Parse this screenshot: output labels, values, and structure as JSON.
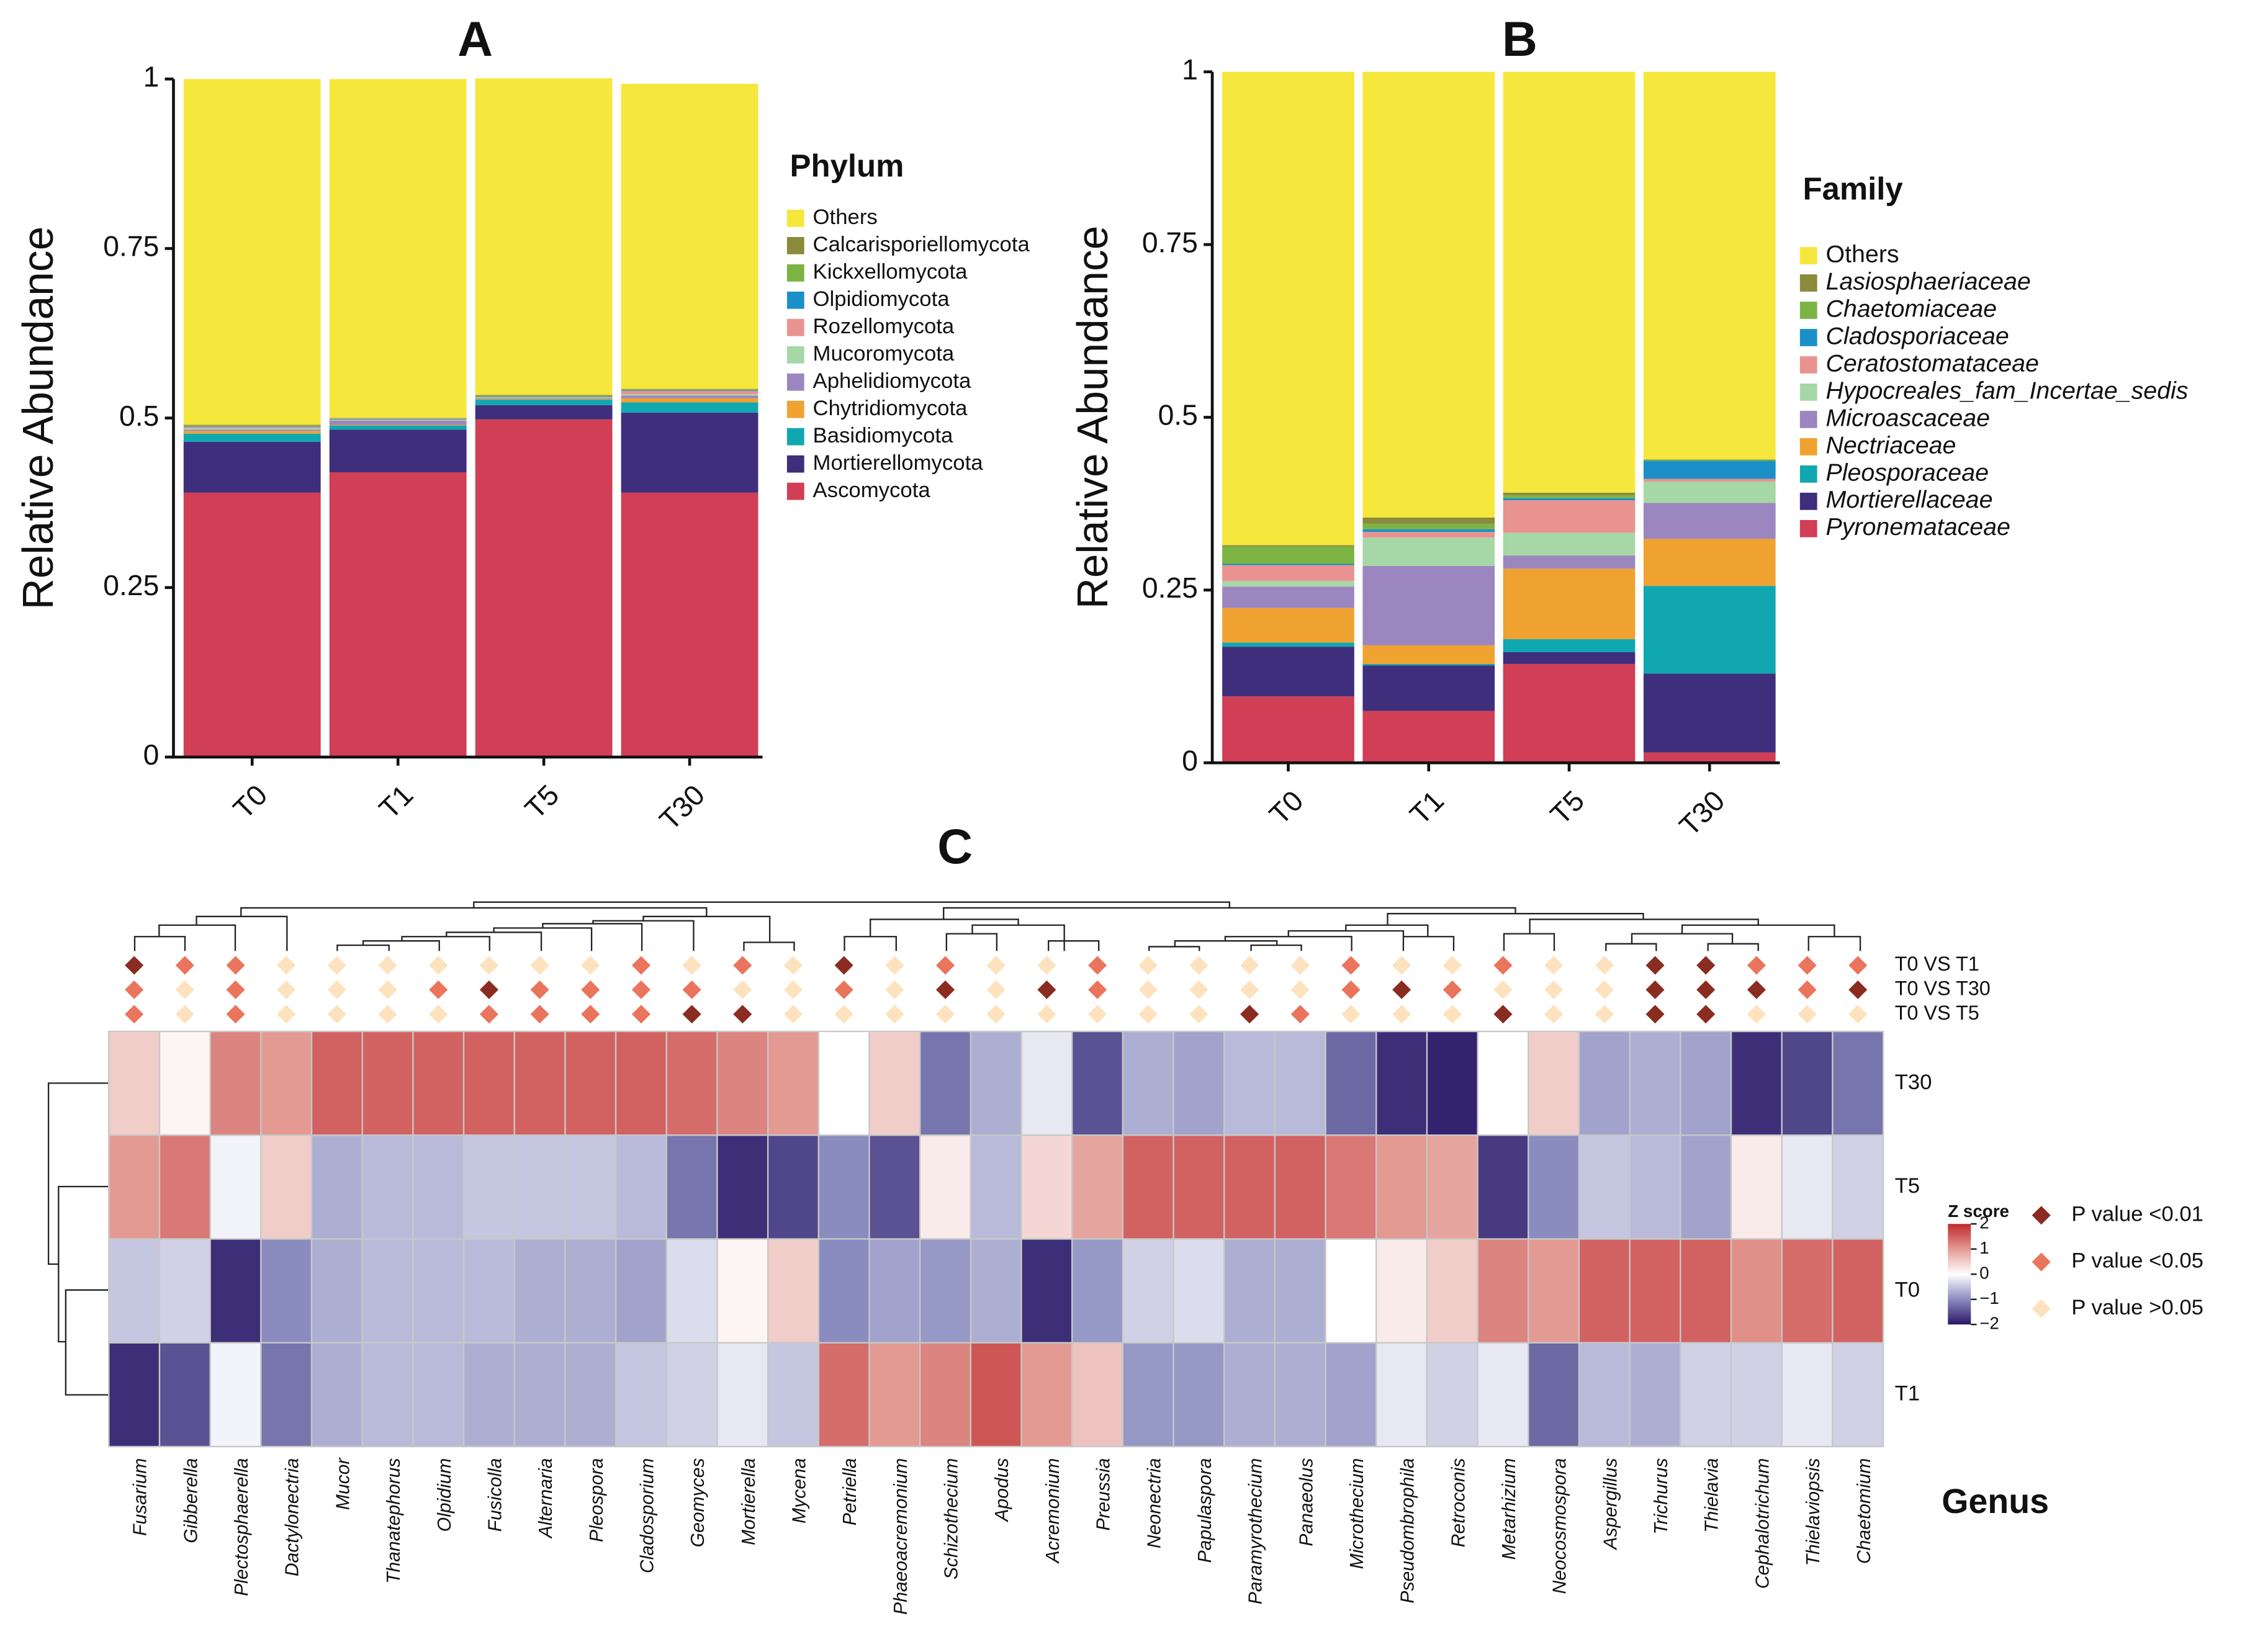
{
  "chart_data": [
    {
      "type": "stacked_bar",
      "title": "A",
      "y_label": "Relative Abundance",
      "legend_title": "Phylum",
      "categories": [
        "T0",
        "T1",
        "T5",
        "T30"
      ],
      "ylim": [
        0,
        1
      ],
      "yticks": [
        0,
        0.25,
        0.5,
        0.75,
        1
      ],
      "series": [
        {
          "name": "Others",
          "color": "#f6e73c",
          "values": [
            0.51,
            0.5,
            0.467,
            0.45
          ]
        },
        {
          "name": "Calcarisporiellomycota",
          "color": "#8c8a3b",
          "values": [
            0.001,
            0.0005,
            0.001,
            0.001
          ]
        },
        {
          "name": "Kickxellomycota",
          "color": "#7bb443",
          "values": [
            0.001,
            0.0005,
            0.001,
            0.001
          ]
        },
        {
          "name": "Olpidiomycota",
          "color": "#1b90c8",
          "values": [
            0.001,
            0.001,
            0.001,
            0.001
          ]
        },
        {
          "name": "Rozellomycota",
          "color": "#e99391",
          "values": [
            0.002,
            0.001,
            0.001,
            0.005
          ]
        },
        {
          "name": "Mucoromycota",
          "color": "#a6d7a6",
          "values": [
            0.002,
            0.001,
            0.001,
            0.002
          ]
        },
        {
          "name": "Aphelidiomycota",
          "color": "#9c86bf",
          "values": [
            0.002,
            0.006,
            0.001,
            0.004
          ]
        },
        {
          "name": "Chytridiomycota",
          "color": "#f0a230",
          "values": [
            0.004,
            0.001,
            0.001,
            0.006
          ]
        },
        {
          "name": "Basidiomycota",
          "color": "#11a7b0",
          "values": [
            0.012,
            0.006,
            0.008,
            0.015
          ]
        },
        {
          "name": "Mortierellomycota",
          "color": "#3e2e7c",
          "values": [
            0.075,
            0.063,
            0.021,
            0.118
          ]
        },
        {
          "name": "Ascomycota",
          "color": "#d03f55",
          "values": [
            0.39,
            0.42,
            0.498,
            0.39
          ]
        }
      ]
    },
    {
      "type": "stacked_bar",
      "title": "B",
      "y_label": "Relative Abundance",
      "legend_title": "Family",
      "categories": [
        "T0",
        "T1",
        "T5",
        "T30"
      ],
      "ylim": [
        0,
        1
      ],
      "yticks": [
        0,
        0.25,
        0.5,
        0.75,
        1
      ],
      "series": [
        {
          "name": "Others",
          "color": "#f6e73c",
          "values": [
            0.685,
            0.645,
            0.609,
            0.561
          ]
        },
        {
          "name": "Lasiosphaeriaceae",
          "color": "#8c8a3b",
          "values": [
            0.002,
            0.009,
            0.004,
            0.001
          ]
        },
        {
          "name": "Chaetomiaceae",
          "color": "#7bb443",
          "values": [
            0.025,
            0.008,
            0.004,
            0.001
          ]
        },
        {
          "name": "Cladosporiaceae",
          "color": "#1b90c8",
          "values": [
            0.002,
            0.004,
            0.003,
            0.026
          ]
        },
        {
          "name": "Ceratostomataceae",
          "color": "#e99391",
          "values": [
            0.023,
            0.008,
            0.047,
            0.004
          ]
        },
        {
          "name": "Hypocreales_fam_Incertae_sedis",
          "color": "#a6d7a6",
          "values": [
            0.008,
            0.041,
            0.033,
            0.031
          ]
        },
        {
          "name": "Microascaceae",
          "color": "#9c86bf",
          "values": [
            0.031,
            0.115,
            0.019,
            0.052
          ]
        },
        {
          "name": "Nectriaceae",
          "color": "#f0a230",
          "values": [
            0.05,
            0.027,
            0.102,
            0.068
          ]
        },
        {
          "name": "Pleosporaceae",
          "color": "#11a7b0",
          "values": [
            0.006,
            0.002,
            0.019,
            0.127
          ]
        },
        {
          "name": "Mortierellaceae",
          "color": "#3e2e7c",
          "values": [
            0.072,
            0.066,
            0.017,
            0.114
          ]
        },
        {
          "name": "Pyronemataceae",
          "color": "#d03f55",
          "values": [
            0.096,
            0.075,
            0.143,
            0.015
          ]
        }
      ]
    },
    {
      "type": "heatmap",
      "title": "C",
      "x_label": "Genus",
      "legend_title": "Z score",
      "rows": [
        "T30",
        "T5",
        "T0",
        "T1"
      ],
      "columns": [
        "Fusarium",
        "Gibberella",
        "Plectosphaerella",
        "Dactylonectria",
        "Mucor",
        "Thanatephorus",
        "Olpidium",
        "Fusicolla",
        "Alternaria",
        "Pleospora",
        "Cladosporium",
        "Geomyces",
        "Mortierella",
        "Mycena",
        "Petriella",
        "Phaeoacremonium",
        "Schizothecium",
        "Apodus",
        "Acremonium",
        "Preussia",
        "Neonectria",
        "Papulaspora",
        "Paramyrothecium",
        "Panaeolus",
        "Microthecium",
        "Pseudombrophila",
        "Retroconis",
        "Metarhizium",
        "Neocosmospora",
        "Aspergillus",
        "Trichurus",
        "Thielavia",
        "Cephalotrichum",
        "Thielaviopsis",
        "Chaetomium"
      ],
      "values": [
        [
          0.5,
          0.1,
          1.2,
          1.0,
          1.5,
          1.5,
          1.5,
          1.5,
          1.5,
          1.5,
          1.5,
          1.4,
          1.2,
          1.0,
          0.0,
          0.5,
          -1.2,
          -0.7,
          -0.2,
          -1.5,
          -0.7,
          -0.8,
          -0.6,
          -0.6,
          -1.3,
          -1.8,
          -1.9,
          0.0,
          0.5,
          -0.8,
          -0.7,
          -0.8,
          -1.8,
          -1.6,
          -1.2
        ],
        [
          1.0,
          1.3,
          -0.1,
          0.5,
          -0.7,
          -0.6,
          -0.6,
          -0.5,
          -0.5,
          -0.5,
          -0.6,
          -1.2,
          -1.8,
          -1.6,
          -1.0,
          -1.5,
          0.2,
          -0.6,
          0.4,
          0.9,
          1.5,
          1.5,
          1.5,
          1.5,
          1.3,
          1.0,
          0.9,
          -1.7,
          -1.0,
          -0.5,
          -0.6,
          -0.8,
          0.2,
          -0.2,
          -0.4
        ],
        [
          -0.5,
          -0.4,
          -1.8,
          -1.0,
          -0.7,
          -0.6,
          -0.6,
          -0.6,
          -0.7,
          -0.7,
          -0.8,
          -0.3,
          0.1,
          0.5,
          -1.0,
          -0.8,
          -0.9,
          -0.7,
          -1.8,
          -0.9,
          -0.4,
          -0.3,
          -0.7,
          -0.7,
          0.0,
          0.2,
          0.5,
          1.2,
          1.0,
          1.5,
          1.5,
          1.5,
          1.1,
          1.4,
          1.5
        ],
        [
          -1.8,
          -1.5,
          -0.1,
          -1.2,
          -0.7,
          -0.6,
          -0.6,
          -0.7,
          -0.7,
          -0.7,
          -0.5,
          -0.4,
          -0.2,
          -0.5,
          1.4,
          1.0,
          1.2,
          1.6,
          1.0,
          0.6,
          -0.9,
          -0.9,
          -0.7,
          -0.7,
          -0.8,
          -0.2,
          -0.4,
          -0.2,
          -1.3,
          -0.6,
          -0.7,
          -0.4,
          -0.4,
          -0.2,
          -0.4
        ]
      ],
      "zlim": [
        -2,
        2
      ],
      "zticks": [
        2,
        1,
        0,
        {
          "value": -1,
          "label": "−1"
        },
        {
          "value": -2,
          "label": "−2"
        }
      ],
      "colormap": [
        "#2a1766",
        "#8a8cbf",
        "#ffffff",
        "#e39a93",
        "#c02a2e"
      ],
      "p_legend": [
        {
          "label": "P value <0.01",
          "color": "#8b2c20"
        },
        {
          "label": "P value <0.05",
          "color": "#ea755c"
        },
        {
          "label": "P value >0.05",
          "color": "#fde2bd"
        }
      ],
      "comparisons": [
        {
          "name": "T0 VS T1",
          "levels": [
            0,
            1,
            1,
            2,
            2,
            2,
            2,
            2,
            2,
            2,
            1,
            2,
            1,
            2,
            0,
            2,
            1,
            2,
            2,
            1,
            2,
            2,
            2,
            2,
            1,
            2,
            2,
            1,
            2,
            2,
            0,
            0,
            1,
            1,
            1
          ]
        },
        {
          "name": "T0 VS T30",
          "levels": [
            1,
            2,
            1,
            2,
            2,
            2,
            1,
            0,
            1,
            1,
            1,
            1,
            2,
            2,
            1,
            2,
            0,
            2,
            0,
            1,
            2,
            2,
            2,
            2,
            1,
            0,
            1,
            2,
            2,
            2,
            0,
            0,
            0,
            1,
            0
          ]
        },
        {
          "name": "T0 VS T5",
          "levels": [
            1,
            2,
            1,
            2,
            2,
            2,
            2,
            1,
            1,
            1,
            1,
            0,
            0,
            2,
            2,
            2,
            2,
            2,
            2,
            2,
            2,
            2,
            0,
            1,
            2,
            2,
            2,
            0,
            2,
            2,
            0,
            0,
            2,
            2,
            2
          ]
        }
      ]
    }
  ]
}
